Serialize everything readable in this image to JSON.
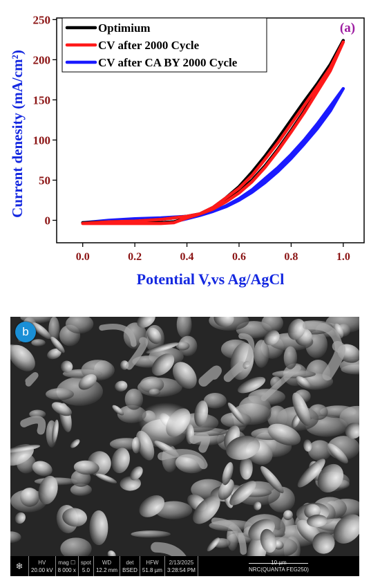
{
  "panel_a": {
    "label": "(a)",
    "colors": {
      "axis_red": "#8b1414",
      "axis_blue": "#1428e0",
      "label_purple": "#9c1aa0"
    }
  },
  "chart_data": {
    "type": "line",
    "xlabel": "Potential V,vs Ag/AgCl",
    "ylabel": "Current denesity (mA/cm²)",
    "xlim": [
      -0.1,
      1.08
    ],
    "ylim": [
      -28,
      252
    ],
    "x_ticks": [
      0.0,
      0.2,
      0.4,
      0.6,
      0.8,
      1.0
    ],
    "x_tick_labels": [
      "0.0",
      "0.2",
      "0.4",
      "0.6",
      "0.8",
      "1.0"
    ],
    "y_ticks": [
      0,
      50,
      100,
      150,
      200,
      250
    ],
    "y_tick_labels": [
      "0",
      "50",
      "100",
      "150",
      "200",
      "250"
    ],
    "grid": false,
    "legend_position": "top-left",
    "series": [
      {
        "name": "Optimium",
        "color": "#000000",
        "x": [
          0.0,
          0.1,
          0.2,
          0.3,
          0.35,
          0.4,
          0.45,
          0.5,
          0.55,
          0.6,
          0.65,
          0.7,
          0.75,
          0.8,
          0.85,
          0.9,
          0.95,
          1.0,
          0.95,
          0.9,
          0.85,
          0.8,
          0.75,
          0.7,
          0.65,
          0.6,
          0.55,
          0.5,
          0.45,
          0.4,
          0.35,
          0.3,
          0.2,
          0.1,
          0.0
        ],
        "y": [
          -3,
          -3,
          -3,
          -3,
          -2,
          3,
          8,
          16,
          28,
          42,
          60,
          80,
          102,
          125,
          148,
          170,
          194,
          224,
          188,
          162,
          136,
          112,
          89,
          68,
          50,
          36,
          24,
          14,
          8,
          5,
          3,
          1,
          -1,
          -2,
          -3
        ]
      },
      {
        "name": "CV after  2000 Cycle",
        "color": "#ff1a1a",
        "x": [
          0.0,
          0.1,
          0.2,
          0.3,
          0.35,
          0.4,
          0.45,
          0.5,
          0.55,
          0.6,
          0.65,
          0.7,
          0.75,
          0.8,
          0.85,
          0.9,
          0.95,
          1.0,
          0.95,
          0.9,
          0.85,
          0.8,
          0.75,
          0.7,
          0.65,
          0.6,
          0.55,
          0.5,
          0.45,
          0.4,
          0.35,
          0.3,
          0.2,
          0.1,
          0.0
        ],
        "y": [
          -4,
          -4,
          -4,
          -4,
          -3,
          3,
          8,
          16,
          28,
          40,
          56,
          76,
          97,
          120,
          143,
          166,
          190,
          222,
          186,
          160,
          134,
          110,
          87,
          66,
          48,
          34,
          23,
          14,
          8,
          5,
          3,
          1,
          -1,
          -2,
          -4
        ]
      },
      {
        "name": "CV after CA BY 2000 Cycle",
        "color": "#1a1aff",
        "x": [
          0.0,
          0.1,
          0.2,
          0.3,
          0.35,
          0.4,
          0.45,
          0.5,
          0.55,
          0.6,
          0.65,
          0.7,
          0.75,
          0.8,
          0.85,
          0.9,
          0.95,
          1.0,
          0.95,
          0.9,
          0.85,
          0.8,
          0.75,
          0.7,
          0.65,
          0.6,
          0.55,
          0.5,
          0.45,
          0.4,
          0.35,
          0.3,
          0.2,
          0.1,
          0.0
        ],
        "y": [
          -3,
          -3,
          -3,
          -3,
          -2,
          2,
          6,
          11,
          18,
          27,
          38,
          52,
          66,
          82,
          100,
          120,
          142,
          164,
          136,
          114,
          95,
          77,
          61,
          47,
          35,
          25,
          17,
          11,
          7,
          5,
          4,
          3,
          2,
          0,
          -3
        ]
      }
    ]
  },
  "panel_b": {
    "label": "b",
    "infobar": {
      "logo": "❄",
      "cells": [
        {
          "label": "HV",
          "value": "20.00 kV"
        },
        {
          "label": "mag ☐",
          "value": "8 000 x"
        },
        {
          "label": "spot",
          "value": "5.0"
        },
        {
          "label": "WD",
          "value": "12.2 mm"
        },
        {
          "label": "det",
          "value": "BSED"
        },
        {
          "label": "HFW",
          "value": "51.8 µm"
        },
        {
          "label": "2/13/2025",
          "value": "3:28:54 PM"
        }
      ],
      "scale_label": "10 µm",
      "instrument": "NRC(QUANTA FEG250)"
    }
  }
}
